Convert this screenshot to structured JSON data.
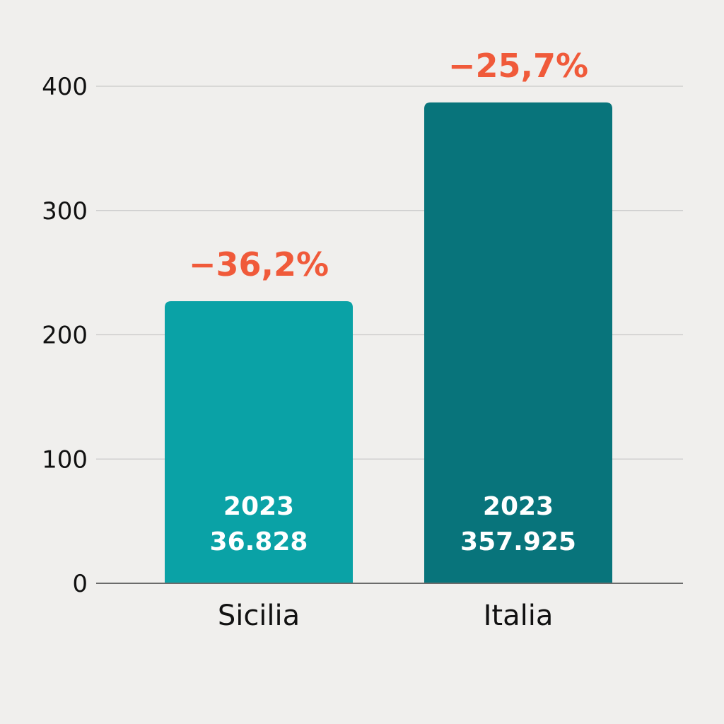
{
  "chart_data": {
    "type": "bar",
    "categories": [
      "Sicilia",
      "Italia"
    ],
    "values": [
      227,
      387
    ],
    "ylim": [
      0,
      400
    ],
    "yticks": [
      0,
      100,
      200,
      300,
      400
    ],
    "grid": true,
    "change_labels": [
      "−36,2%",
      "−25,7%"
    ],
    "inner_labels": [
      {
        "year": "2023",
        "value": "36.828"
      },
      {
        "year": "2023",
        "value": "357.925"
      }
    ],
    "colors": {
      "bars": [
        "#0aa2a6",
        "#08747b"
      ],
      "change_label": "#f05a3a",
      "grid": "#c9c9c9",
      "axis": "#6b6b6b",
      "background": "#f0efed"
    }
  }
}
